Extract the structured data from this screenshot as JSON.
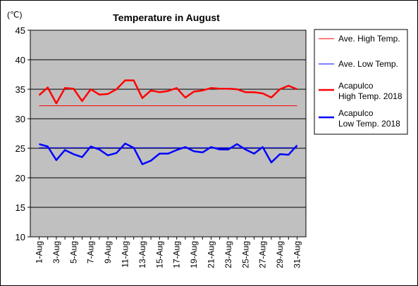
{
  "chart_data": {
    "type": "line",
    "title": "Temperature in August",
    "ylabel": "(℃)",
    "xlabel": "",
    "ylim": [
      10,
      45
    ],
    "yticks": [
      10,
      15,
      20,
      25,
      30,
      35,
      40,
      45
    ],
    "grid": true,
    "legend_position": "right",
    "plot_background": "#c0c0c0",
    "x": [
      "1-Aug",
      "2-Aug",
      "3-Aug",
      "4-Aug",
      "5-Aug",
      "6-Aug",
      "7-Aug",
      "8-Aug",
      "9-Aug",
      "10-Aug",
      "11-Aug",
      "12-Aug",
      "13-Aug",
      "14-Aug",
      "15-Aug",
      "16-Aug",
      "17-Aug",
      "18-Aug",
      "19-Aug",
      "20-Aug",
      "21-Aug",
      "22-Aug",
      "23-Aug",
      "24-Aug",
      "25-Aug",
      "26-Aug",
      "27-Aug",
      "28-Aug",
      "29-Aug",
      "30-Aug",
      "31-Aug"
    ],
    "xtick_labels": [
      "1-Aug",
      "3-Aug",
      "5-Aug",
      "7-Aug",
      "9-Aug",
      "11-Aug",
      "13-Aug",
      "15-Aug",
      "17-Aug",
      "19-Aug",
      "21-Aug",
      "23-Aug",
      "25-Aug",
      "27-Aug",
      "29-Aug",
      "31-Aug"
    ],
    "series": [
      {
        "name": "Ave. High Temp.",
        "color": "#ff0000",
        "style": "thin",
        "values": [
          32.2,
          32.2,
          32.2,
          32.2,
          32.2,
          32.2,
          32.2,
          32.2,
          32.2,
          32.2,
          32.2,
          32.2,
          32.2,
          32.2,
          32.2,
          32.2,
          32.2,
          32.2,
          32.2,
          32.2,
          32.2,
          32.2,
          32.2,
          32.2,
          32.2,
          32.2,
          32.2,
          32.2,
          32.2,
          32.2,
          32.2
        ]
      },
      {
        "name": "Ave. Low Temp.",
        "color": "#0000ff",
        "style": "thin",
        "values": [
          25.1,
          25.1,
          25.1,
          25.1,
          25.1,
          25.1,
          25.1,
          25.1,
          25.1,
          25.1,
          25.1,
          25.1,
          25.1,
          25.1,
          25.1,
          25.1,
          25.1,
          25.1,
          25.1,
          25.1,
          25.1,
          25.1,
          25.1,
          25.1,
          25.1,
          25.1,
          25.1,
          25.1,
          25.1,
          25.1,
          25.1
        ]
      },
      {
        "name": "Acapulco\nHigh Temp. 2018",
        "color": "#ff0000",
        "style": "thick",
        "values": [
          34.0,
          35.3,
          32.6,
          35.2,
          35.1,
          33.0,
          35.0,
          34.1,
          34.2,
          35.0,
          36.5,
          36.5,
          33.5,
          34.8,
          34.5,
          34.7,
          35.2,
          33.6,
          34.6,
          34.8,
          35.2,
          35.1,
          35.1,
          35.0,
          34.5,
          34.5,
          34.3,
          33.6,
          35.0,
          35.6,
          35.0
        ]
      },
      {
        "name": "Acapulco\nLow Temp. 2018",
        "color": "#0000ff",
        "style": "thick",
        "values": [
          25.7,
          25.3,
          23.0,
          24.7,
          24.0,
          23.5,
          25.3,
          24.8,
          23.8,
          24.2,
          25.8,
          25.1,
          22.3,
          22.9,
          24.1,
          24.1,
          24.7,
          25.2,
          24.5,
          24.3,
          25.2,
          24.8,
          24.8,
          25.7,
          24.8,
          24.1,
          25.2,
          22.6,
          24.0,
          23.9,
          25.5
        ]
      }
    ]
  }
}
